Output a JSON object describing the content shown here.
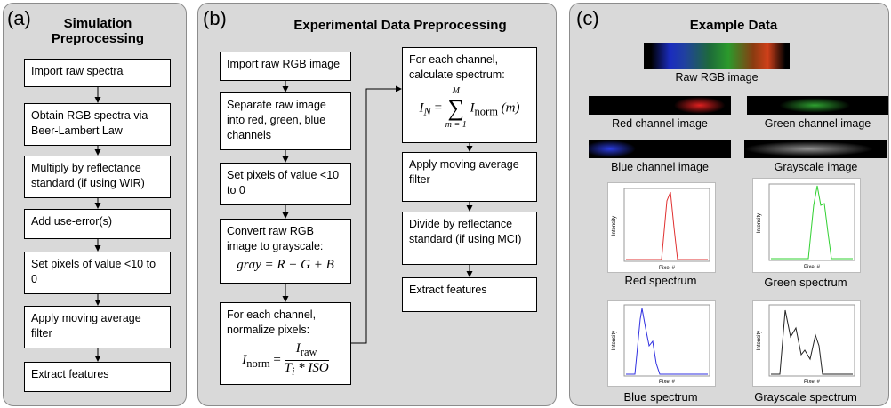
{
  "a": {
    "label": "(a)",
    "title": "Simulation Preprocessing",
    "steps": [
      "Import raw spectra",
      "Obtain RGB spectra via Beer-Lambert Law",
      "Multiply by reflectance standard (if using WIR)",
      "Add use-error(s)",
      "Set pixels of value <10 to 0",
      "Apply moving average filter",
      "Extract features"
    ]
  },
  "b": {
    "label": "(b)",
    "title": "Experimental Data Preprocessing",
    "left": [
      {
        "text": "Import raw RGB image"
      },
      {
        "text": "Separate raw image into red, green, blue channels"
      },
      {
        "text": "Set pixels of value <10 to 0"
      },
      {
        "text": "Convert raw RGB image to grayscale:",
        "formula": "gray = R + G + B"
      },
      {
        "text": "For each channel, normalize pixels:",
        "formula": {
          "var": "I",
          "sub": "norm",
          "eq": "=",
          "num": "I",
          "num_sub": "raw",
          "den": "T",
          "den_sub": "i",
          "den_tail": " * ISO"
        }
      }
    ],
    "right": [
      {
        "text": "For each channel, calculate spectrum:",
        "formula": {
          "var": "I",
          "sub": "N",
          "eq": "=",
          "sum": "∑",
          "upper": "M",
          "lower": "m = 1",
          "term": "I",
          "term_sub": "norm",
          "arg": "(m)"
        }
      },
      {
        "text": "Apply moving average filter"
      },
      {
        "text": "Divide by reflectance standard (if using MCI)"
      },
      {
        "text": "Extract features"
      }
    ]
  },
  "c": {
    "label": "(c)",
    "title": "Example Data",
    "images": [
      "Raw RGB image",
      "Red channel image",
      "Green channel image",
      "Blue channel image",
      "Grayscale image"
    ],
    "plots": [
      {
        "caption": "Red spectrum",
        "ylabel": "Intensity",
        "xlabel": "Pixel #"
      },
      {
        "caption": "Green spectrum",
        "ylabel": "Intensity",
        "xlabel": "Pixel #"
      },
      {
        "caption": "Blue spectrum",
        "ylabel": "Intensity",
        "xlabel": "Pixel #"
      },
      {
        "caption": "Grayscale spectrum",
        "ylabel": "Intensity",
        "xlabel": "Pixel #"
      }
    ]
  }
}
